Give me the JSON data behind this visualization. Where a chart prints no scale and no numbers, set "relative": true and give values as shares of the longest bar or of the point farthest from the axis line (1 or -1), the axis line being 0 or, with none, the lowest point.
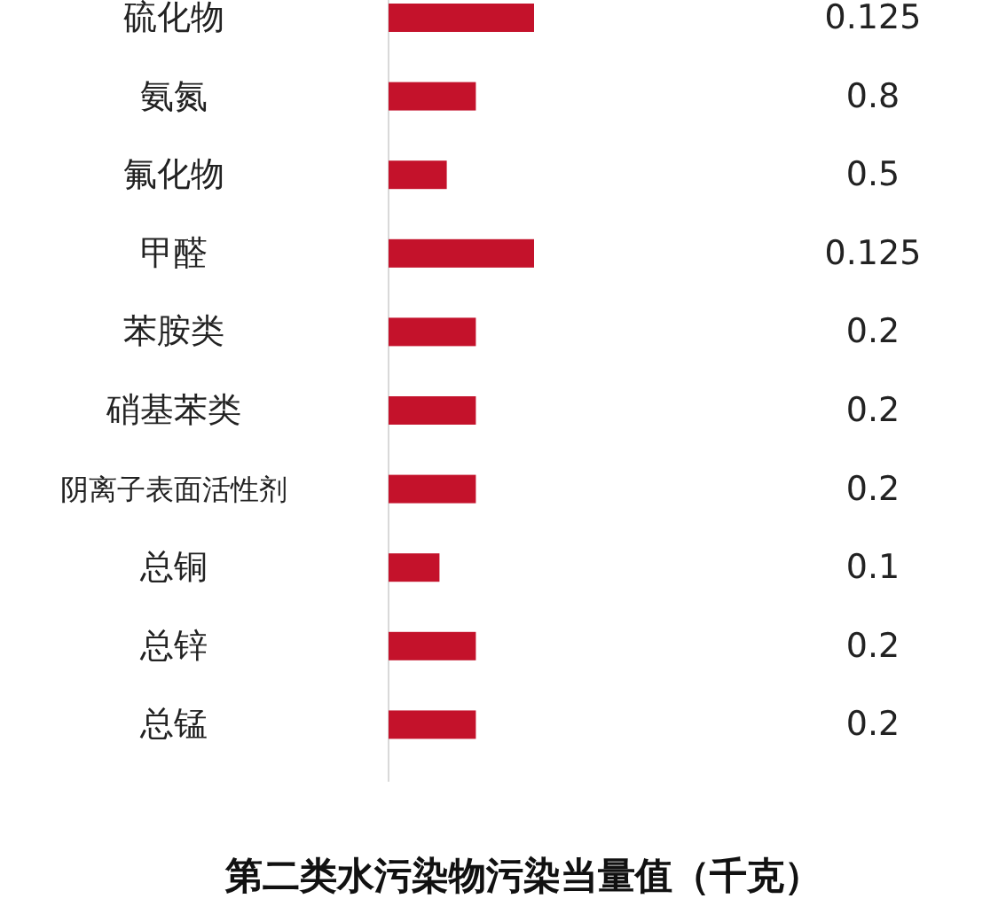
{
  "chart_data": [
    {
      "type": "bar",
      "orientation": "horizontal",
      "relative": true,
      "title": "第二类水污染物污染当量值（千克）",
      "categories": [
        "硫化物",
        "氨氮",
        "氟化物",
        "甲醛",
        "苯胺类",
        "硝基苯类",
        "阴离子表面活性剂",
        "总铜",
        "总锌",
        "总锰"
      ],
      "values": [
        1,
        0.6,
        0.4,
        1,
        0.6,
        0.6,
        0.6,
        0.35,
        0.6,
        0.6
      ],
      "color": "#c4122b"
    },
    {
      "type": "other",
      "annotations": [
        "0.125",
        "0.8",
        "0.5",
        "0.125",
        "0.2",
        "0.2",
        "0.2",
        "0.1",
        "0.2",
        "0.2"
      ]
    }
  ]
}
